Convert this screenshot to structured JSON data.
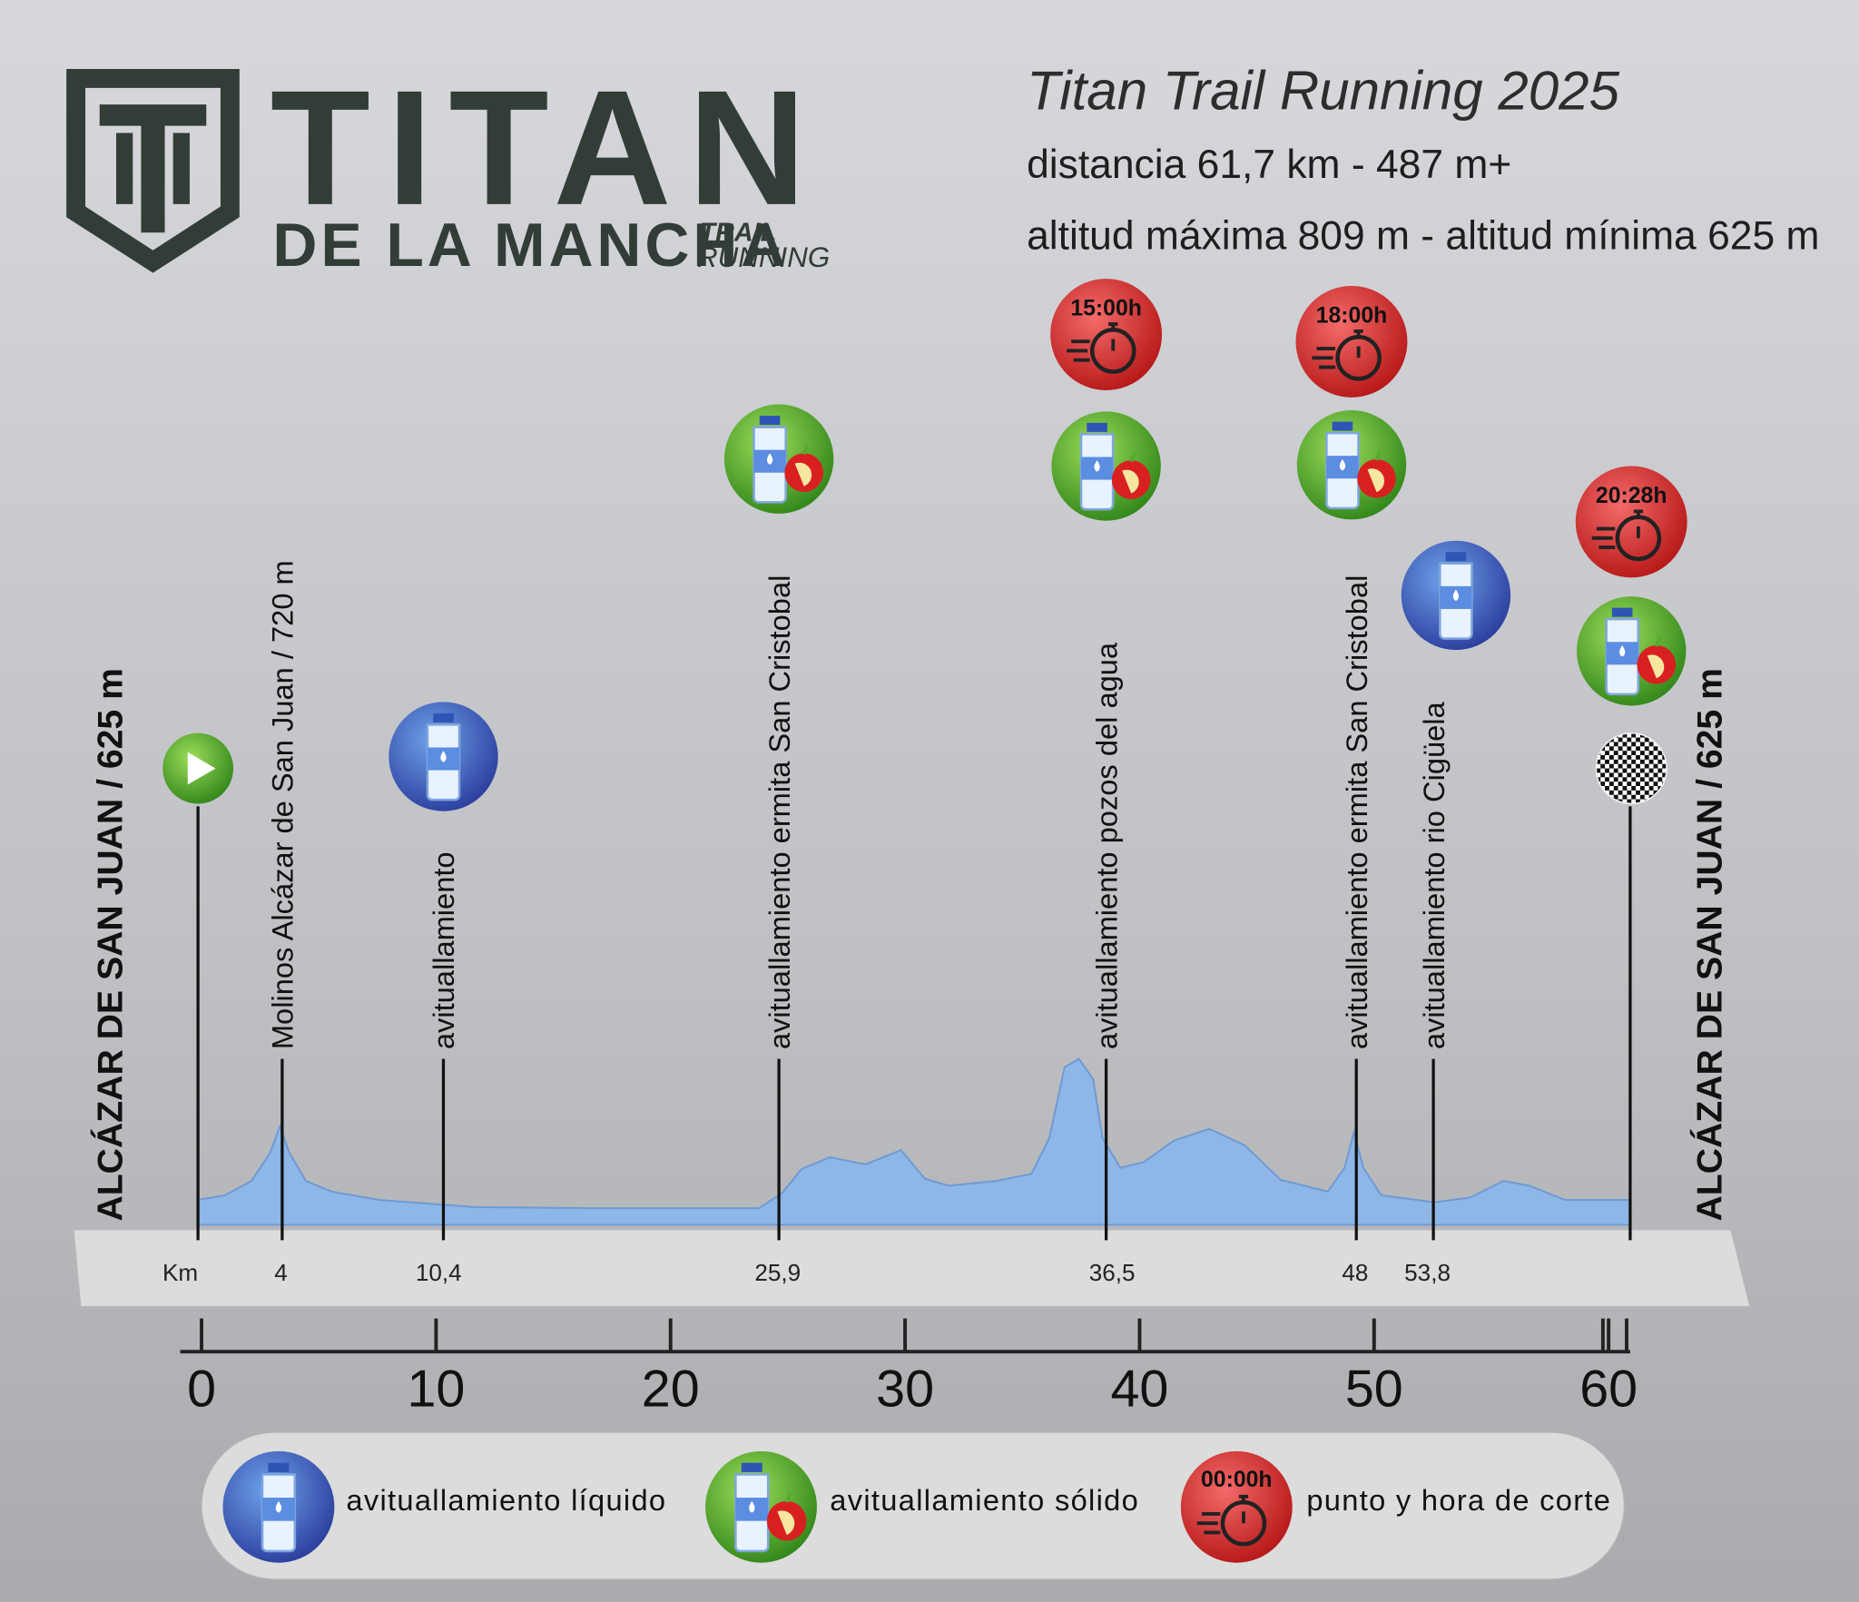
{
  "header": {
    "logo_title": "TITAN",
    "logo_subtitle": "DE LA MANCHA",
    "logo_tag_1": "TRAIL",
    "logo_tag_2": "RUNNING",
    "event": "Titan Trail Running 2025",
    "distance": "distancia 61,7 km - 487 m+",
    "altitude": "altitud máxima 809 m - altitud mínima 625 m"
  },
  "start_label": "ALCÁZAR DE SAN JUAN / 625 m",
  "end_label": "ALCÁZAR DE SAN JUAN / 625 m",
  "km_unit": "Km",
  "waypoints": [
    {
      "label": "Molinos Alcázar de San Juan / 720 m",
      "km": "4"
    },
    {
      "label": "avituallamiento",
      "km": "10,4"
    },
    {
      "label": "avituallamiento ermita San Cristobal",
      "km": "25,9"
    },
    {
      "label": "avituallamiento pozos del agua",
      "km": "36,5",
      "cutoff": "15:00h"
    },
    {
      "label": "avituallamiento ermita San Cristobal",
      "km": "48",
      "cutoff": "18:00h"
    },
    {
      "label": "avituallamiento rio Cigüela",
      "km": "53,8"
    }
  ],
  "finish_cutoff": "20:28h",
  "scale_ticks": [
    0,
    10,
    20,
    30,
    40,
    50,
    60
  ],
  "legend": {
    "liquid": "avituallamiento líquido",
    "solid": "avituallamiento sólido",
    "cutoff_sample": "00:00h",
    "cutoff": "punto y hora de corte"
  }
}
